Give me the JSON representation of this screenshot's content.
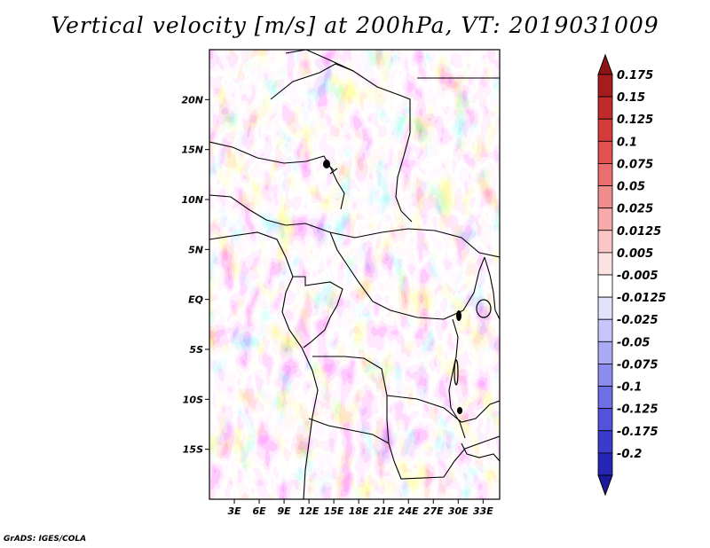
{
  "title": "Vertical velocity [m/s] at 200hPa, VT: 2019031009",
  "credit": "GrADS: IGES/COLA",
  "map": {
    "lon_range": [
      0,
      35
    ],
    "lat_range": [
      -20,
      25
    ],
    "lat_ticks": [
      {
        "value": 20,
        "label": "20N"
      },
      {
        "value": 15,
        "label": "15N"
      },
      {
        "value": 10,
        "label": "10N"
      },
      {
        "value": 5,
        "label": "5N"
      },
      {
        "value": 0,
        "label": "EQ"
      },
      {
        "value": -5,
        "label": "5S"
      },
      {
        "value": -10,
        "label": "10S"
      },
      {
        "value": -15,
        "label": "15S"
      }
    ],
    "lon_ticks": [
      {
        "value": 3,
        "label": "3E"
      },
      {
        "value": 6,
        "label": "6E"
      },
      {
        "value": 9,
        "label": "9E"
      },
      {
        "value": 12,
        "label": "12E"
      },
      {
        "value": 15,
        "label": "15E"
      },
      {
        "value": 18,
        "label": "18E"
      },
      {
        "value": 21,
        "label": "21E"
      },
      {
        "value": 24,
        "label": "24E"
      },
      {
        "value": 27,
        "label": "27E"
      },
      {
        "value": 30,
        "label": "30E"
      },
      {
        "value": 33,
        "label": "33E"
      }
    ]
  },
  "colorbar": {
    "levels": [
      {
        "label": "0.175",
        "color": "#a51c1c"
      },
      {
        "label": "0.15",
        "color": "#c02a2a"
      },
      {
        "label": "0.125",
        "color": "#d43c3c"
      },
      {
        "label": "0.1",
        "color": "#e05252"
      },
      {
        "label": "0.075",
        "color": "#ea6e6e"
      },
      {
        "label": "0.05",
        "color": "#f18c8c"
      },
      {
        "label": "0.025",
        "color": "#f6aaaa"
      },
      {
        "label": "0.0125",
        "color": "#fac6c6"
      },
      {
        "label": "0.005",
        "color": "#fde2e2"
      },
      {
        "label": "-0.005",
        "color": "#ffffff"
      },
      {
        "label": "-0.0125",
        "color": "#e2e2fd"
      },
      {
        "label": "-0.025",
        "color": "#c6c6fa"
      },
      {
        "label": "-0.05",
        "color": "#aaaaf5"
      },
      {
        "label": "-0.075",
        "color": "#8c8cef"
      },
      {
        "label": "-0.1",
        "color": "#6e6ee6"
      },
      {
        "label": "-0.125",
        "color": "#5252db"
      },
      {
        "label": "-0.175",
        "color": "#3a3acb"
      },
      {
        "label": "-0.2",
        "color": "#2626b4"
      }
    ],
    "top_color": "#8c1414",
    "bottom_color": "#1a1a9a"
  }
}
